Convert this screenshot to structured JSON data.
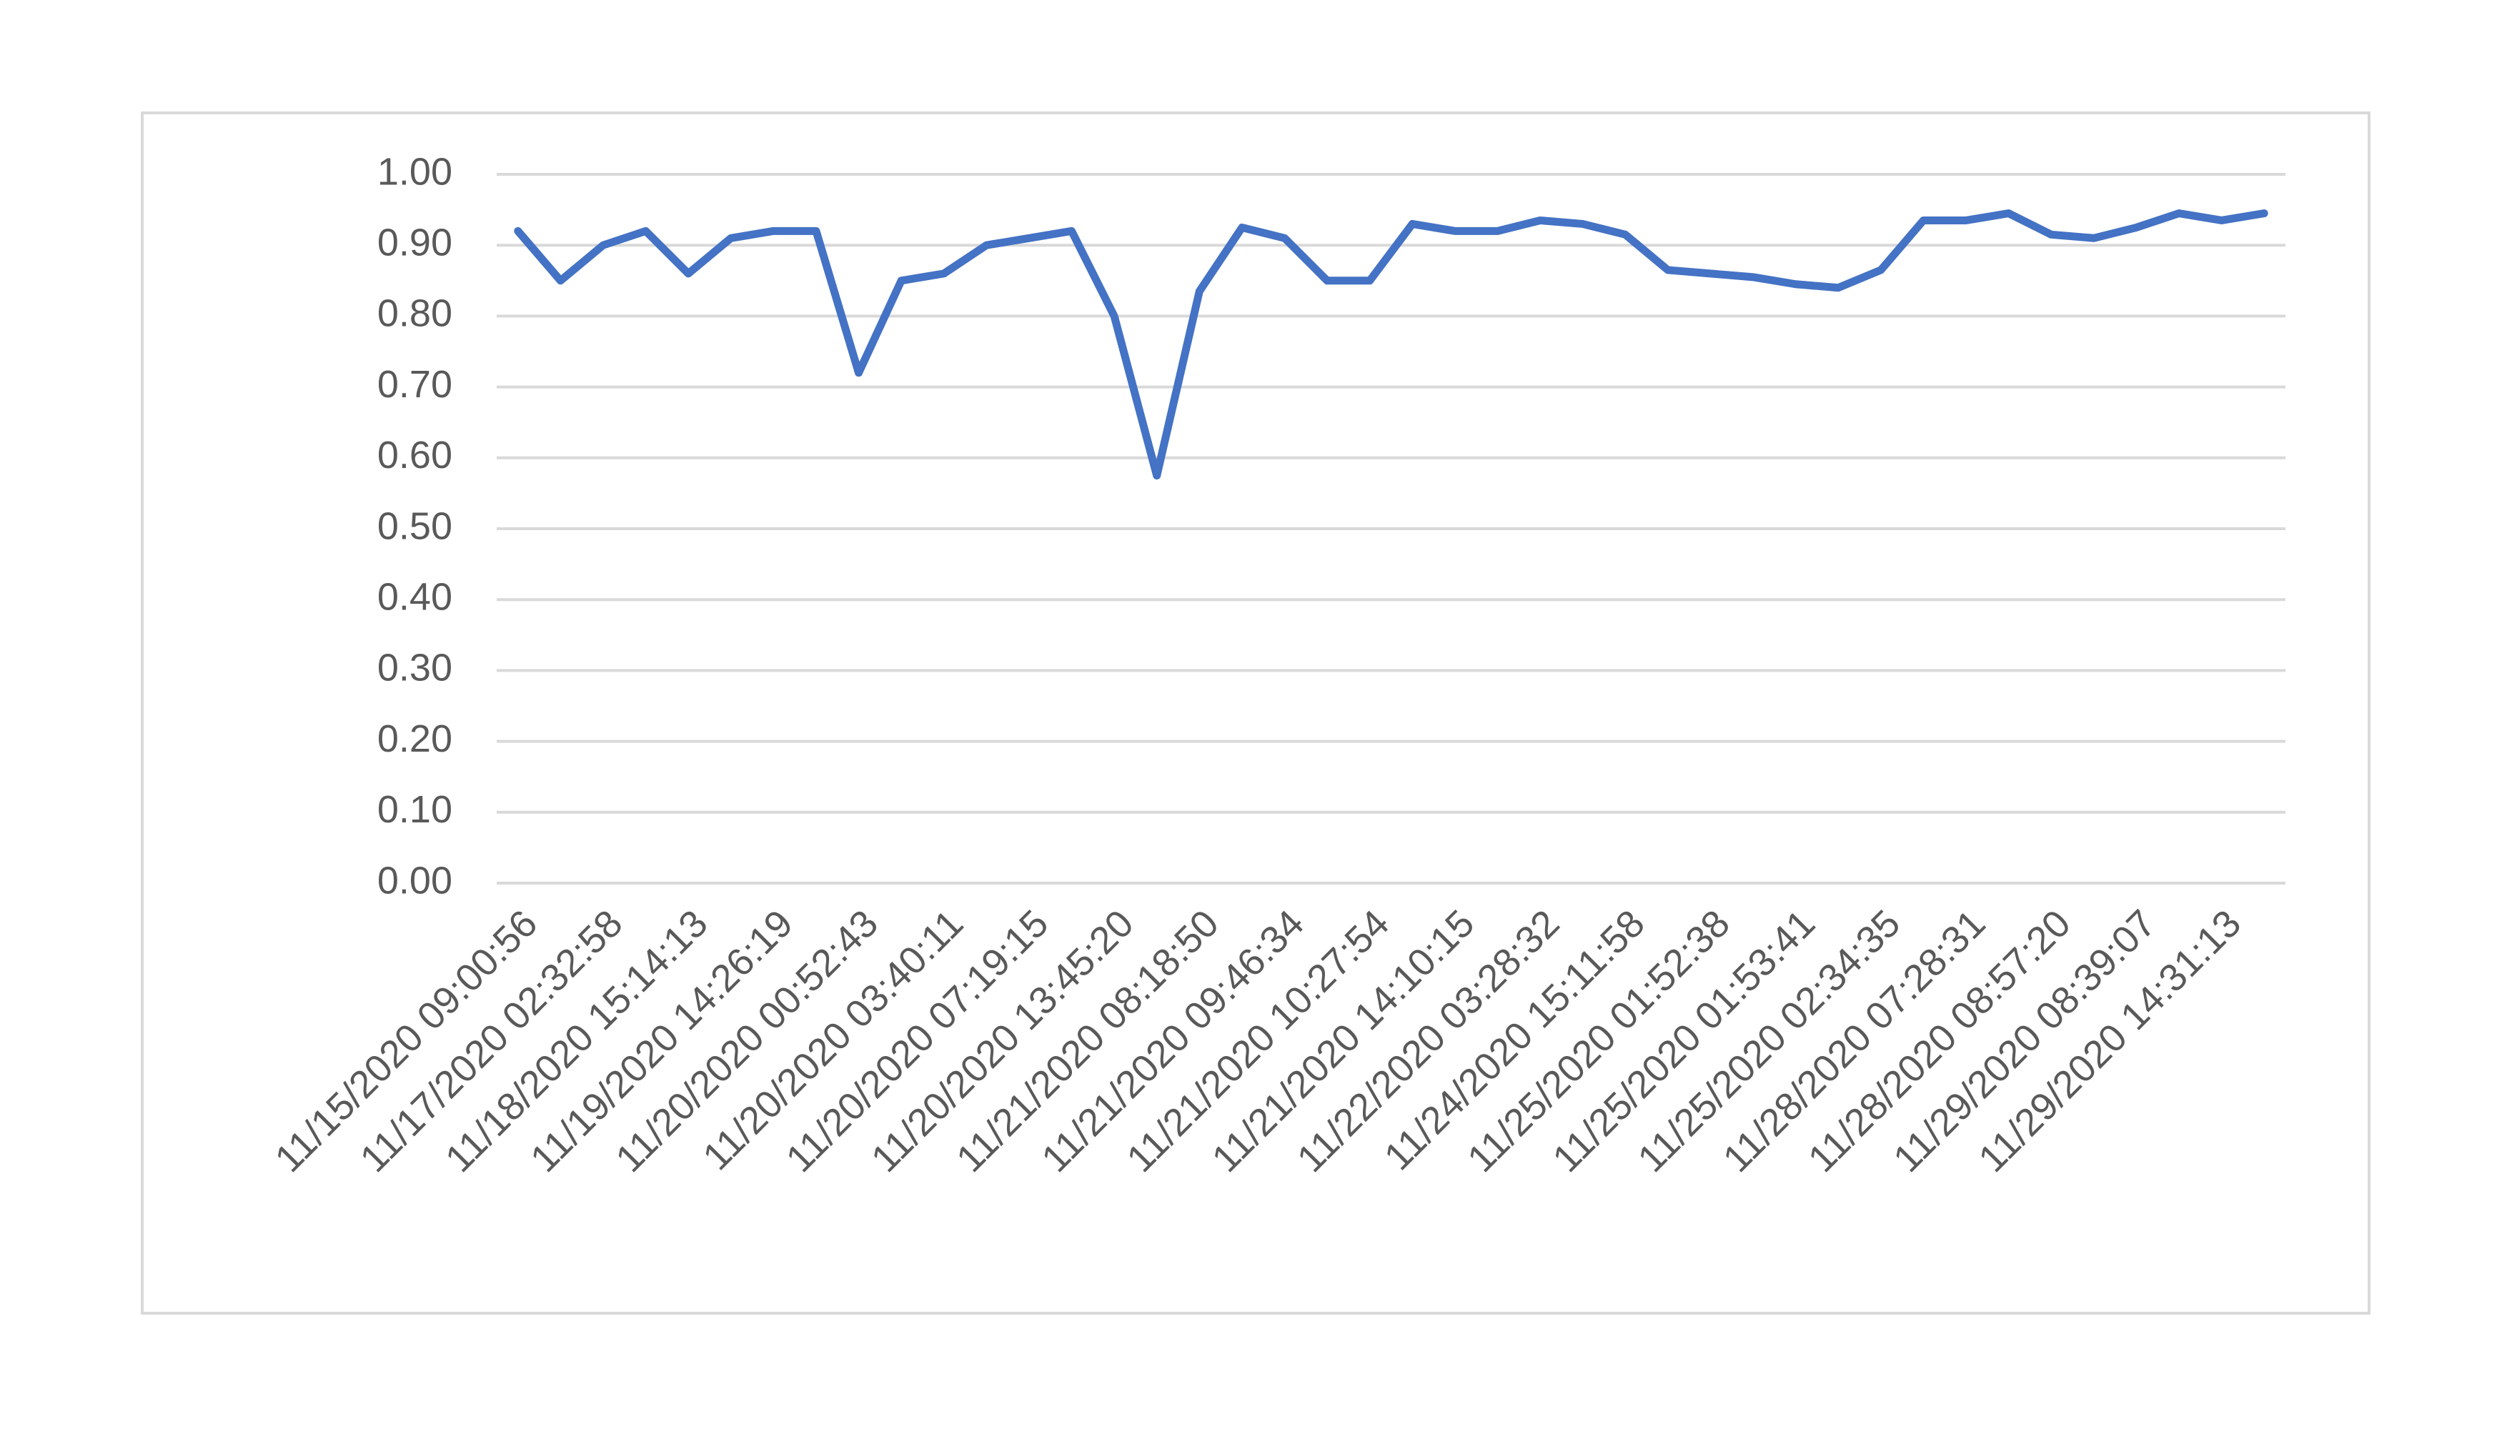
{
  "chart_data": {
    "type": "line",
    "categories": [
      "11/15/2020 09:00:56",
      null,
      "11/17/2020 02:32:58",
      null,
      "11/18/2020 15:14:13",
      null,
      "11/19/2020 14:26:19",
      null,
      "11/20/2020 00:52:43",
      null,
      "11/20/2020 03:40:11",
      null,
      "11/20/2020 07:19:15",
      null,
      "11/20/2020 13:45:20",
      null,
      "11/21/2020 08:18:50",
      null,
      "11/21/2020 09:46:34",
      null,
      "11/21/2020 10:27:54",
      null,
      "11/21/2020 14:10:15",
      null,
      "11/22/2020 03:28:32",
      null,
      "11/24/2020 15:11:58",
      null,
      "11/25/2020 01:52:38",
      null,
      "11/25/2020 01:53:41",
      null,
      "11/25/2020 02:34:35",
      null,
      "11/28/2020 07:28:31",
      null,
      "11/28/2020 08:57:20",
      null,
      "11/29/2020 08:39:07",
      null,
      "11/29/2020 14:31:13",
      null
    ],
    "values": [
      0.92,
      0.85,
      0.9,
      0.92,
      0.86,
      0.91,
      0.92,
      0.92,
      0.72,
      0.85,
      0.86,
      0.9,
      0.91,
      0.92,
      0.8,
      0.575,
      0.835,
      0.925,
      0.91,
      0.85,
      0.85,
      0.93,
      0.92,
      0.92,
      0.935,
      0.93,
      0.915,
      0.865,
      0.86,
      0.855,
      0.845,
      0.84,
      0.865,
      0.935,
      0.935,
      0.945,
      0.915,
      0.91,
      0.925,
      0.945,
      0.935,
      0.945
    ],
    "color": "#4472c4",
    "ylim": [
      0,
      1
    ],
    "yticks": [
      {
        "value": 0,
        "label": "0.00"
      },
      {
        "value": 0.1,
        "label": "0.10"
      },
      {
        "value": 0.2,
        "label": "0.20"
      },
      {
        "value": 0.3,
        "label": "0.30"
      },
      {
        "value": 0.4,
        "label": "0.40"
      },
      {
        "value": 0.5,
        "label": "0.50"
      },
      {
        "value": 0.6,
        "label": "0.60"
      },
      {
        "value": 0.7,
        "label": "0.70"
      },
      {
        "value": 0.8,
        "label": "0.80"
      },
      {
        "value": 0.9,
        "label": "0.90"
      },
      {
        "value": 1,
        "label": "1.00"
      }
    ],
    "grid": true
  }
}
